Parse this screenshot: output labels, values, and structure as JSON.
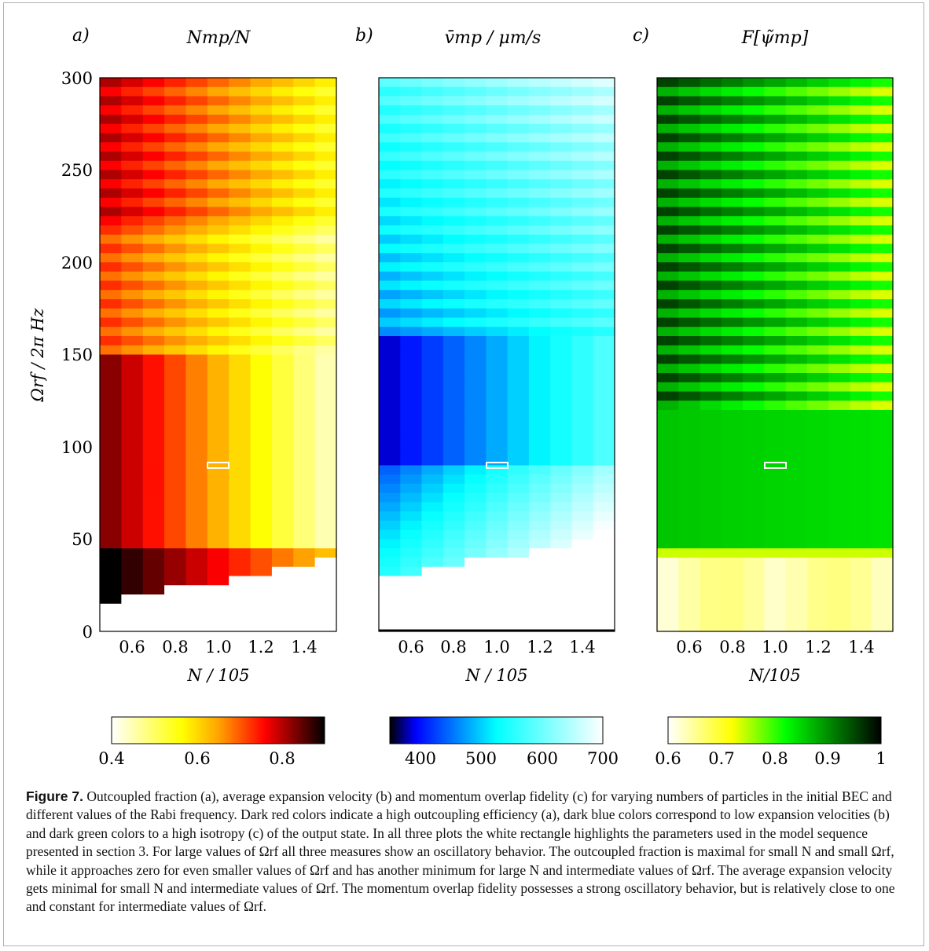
{
  "figure_label": "Figure 7.",
  "caption_text": "Outcoupled fraction (a), average expansion velocity (b) and momentum overlap fidelity (c) for varying numbers of particles in the initial BEC and different values of the Rabi frequency. Dark red colors indicate a high outcoupling efficiency (a), dark blue colors correspond to low expansion velocities (b) and dark green colors to a high isotropy (c) of the output state. In all three plots the white rectangle highlights the parameters used in the model sequence presented in section 3. For large values of Ωrf all three measures show an oscillatory behavior. The outcoupled fraction is maximal for small N and small Ωrf, while it approaches zero for even smaller values of Ωrf and has another minimum for large N and intermediate values of Ωrf. The average expansion velocity gets minimal for small N and intermediate values of Ωrf. The momentum overlap fidelity possesses a strong oscillatory behavior, but is relatively close to one and constant for intermediate values of Ωrf.",
  "shared_y_axis": {
    "label": "Ωrf / 2π Hz",
    "ticks": [
      "0",
      "50",
      "100",
      "150",
      "200",
      "250",
      "300"
    ]
  },
  "panels": [
    {
      "letter": "a)",
      "title": "Nmp/N",
      "xlabel": "N / 105",
      "xticks": [
        "0.6",
        "0.8",
        "1.0",
        "1.2",
        "1.4"
      ],
      "colorbar_ticks": [
        "0.4",
        "0.6",
        "0.8"
      ]
    },
    {
      "letter": "b)",
      "title": "v̄mp / μm/s",
      "xlabel": "N / 105",
      "xticks": [
        "0.6",
        "0.8",
        "1.0",
        "1.2",
        "1.4"
      ],
      "colorbar_ticks": [
        "400",
        "500",
        "600",
        "700"
      ]
    },
    {
      "letter": "c)",
      "title": "F[ψ̃mp]",
      "xlabel": "N/105",
      "xticks": [
        "0.6",
        "0.8",
        "1.0",
        "1.2",
        "1.4"
      ],
      "colorbar_ticks": [
        "0.6",
        "0.7",
        "0.8",
        "0.9",
        "1"
      ]
    }
  ],
  "chart_data": [
    {
      "type": "heatmap",
      "title": "Nmp/N",
      "xlabel": "N / 10^5",
      "ylabel": "Ωrf / 2π Hz",
      "xlim": [
        0.45,
        1.55
      ],
      "ylim": [
        0,
        300
      ],
      "colormap": "hot (white → yellow → red → black)",
      "color_range": [
        0.4,
        0.9
      ],
      "highlight": {
        "N": 1.0,
        "Omega_rf": 90
      },
      "x_ticks": [
        0.6,
        0.8,
        1.0,
        1.2,
        1.4
      ],
      "y_ticks": [
        0,
        50,
        100,
        150,
        200,
        250,
        300
      ]
    },
    {
      "type": "heatmap",
      "title": "v̄mp / μm/s",
      "xlabel": "N / 10^5",
      "ylabel": "Ωrf / 2π Hz",
      "xlim": [
        0.45,
        1.55
      ],
      "ylim": [
        0,
        300
      ],
      "colormap": "black → blue → cyan → white",
      "color_range": [
        350,
        700
      ],
      "highlight": {
        "N": 1.0,
        "Omega_rf": 90
      },
      "x_ticks": [
        0.6,
        0.8,
        1.0,
        1.2,
        1.4
      ],
      "y_ticks": [
        0,
        50,
        100,
        150,
        200,
        250,
        300
      ]
    },
    {
      "type": "heatmap",
      "title": "F[ψ̃mp]",
      "xlabel": "N / 10^5",
      "ylabel": "Ωrf / 2π Hz",
      "xlim": [
        0.45,
        1.55
      ],
      "ylim": [
        0,
        300
      ],
      "colormap": "white → yellow → green → black",
      "color_range": [
        0.6,
        1.0
      ],
      "highlight": {
        "N": 1.0,
        "Omega_rf": 90
      },
      "x_ticks": [
        0.6,
        0.8,
        1.0,
        1.2,
        1.4
      ],
      "y_ticks": [
        0,
        50,
        100,
        150,
        200,
        250,
        300
      ]
    }
  ]
}
